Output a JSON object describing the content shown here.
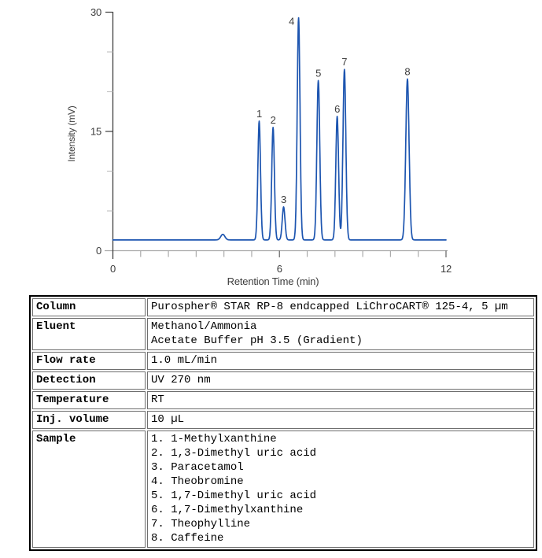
{
  "chart_data": {
    "type": "line",
    "title": "",
    "xlabel": "Retention Time (min)",
    "ylabel": "Intensity (mV)",
    "xlim": [
      0,
      12
    ],
    "ylim": [
      0,
      30
    ],
    "x_major_ticks": [
      0,
      6,
      12
    ],
    "x_minor_ticks": [
      1,
      2,
      3,
      4,
      5,
      7,
      8,
      9,
      10,
      11
    ],
    "x_tick_labels": [
      "0",
      "6",
      "12"
    ],
    "y_major_ticks": [
      0,
      15,
      30
    ],
    "y_minor_ticks": [
      5,
      10,
      20,
      25
    ],
    "y_tick_labels": [
      "0",
      "15",
      "30"
    ],
    "grid": false,
    "legend": false,
    "baseline_mv": 1.35,
    "colors": {
      "trace": "#1d55b0",
      "x_axis": "#ababab",
      "y_axis": "#3f3f3f",
      "major_tick": "#4a4a4a",
      "minor_tick": "#c4c4c4",
      "text": "#3c3c3c"
    },
    "peaks": [
      {
        "label": "",
        "rt_min": 3.96,
        "apex_mv": 2.05,
        "sigma_min": 0.075
      },
      {
        "label": "1",
        "rt_min": 5.27,
        "apex_mv": 16.3,
        "sigma_min": 0.048
      },
      {
        "label": "2",
        "rt_min": 5.77,
        "apex_mv": 15.5,
        "sigma_min": 0.048
      },
      {
        "label": "3",
        "rt_min": 6.15,
        "apex_mv": 5.5,
        "sigma_min": 0.05
      },
      {
        "label": "4",
        "rt_min": 6.69,
        "apex_mv": 29.3,
        "sigma_min": 0.05
      },
      {
        "label": "5",
        "rt_min": 7.4,
        "apex_mv": 21.4,
        "sigma_min": 0.052
      },
      {
        "label": "6",
        "rt_min": 8.08,
        "apex_mv": 16.9,
        "sigma_min": 0.05
      },
      {
        "label": "7",
        "rt_min": 8.34,
        "apex_mv": 22.8,
        "sigma_min": 0.052
      },
      {
        "label": "8",
        "rt_min": 10.61,
        "apex_mv": 21.6,
        "sigma_min": 0.06
      }
    ]
  },
  "table": {
    "rows": [
      {
        "label": "Column",
        "lines": [
          "Purospher® STAR RP-8 endcapped LiChroCART® 125-4, 5 µm"
        ]
      },
      {
        "label": "Eluent",
        "lines": [
          "Methanol/Ammonia",
          "Acetate Buffer pH 3.5 (Gradient)"
        ]
      },
      {
        "label": "Flow rate",
        "lines": [
          "1.0 mL/min"
        ]
      },
      {
        "label": "Detection",
        "lines": [
          "UV 270 nm"
        ]
      },
      {
        "label": "Temperature",
        "lines": [
          "RT"
        ]
      },
      {
        "label": "Inj. volume",
        "lines": [
          "10 µL"
        ]
      },
      {
        "label": "Sample",
        "lines": [
          "1. 1-Methylxanthine",
          "2. 1,3-Dimethyl uric acid",
          "3. Paracetamol",
          "4. Theobromine",
          "5. 1,7-Dimethyl uric acid",
          "6. 1,7-Dimethylxanthine",
          "7. Theophylline",
          "8. Caffeine"
        ]
      }
    ]
  }
}
